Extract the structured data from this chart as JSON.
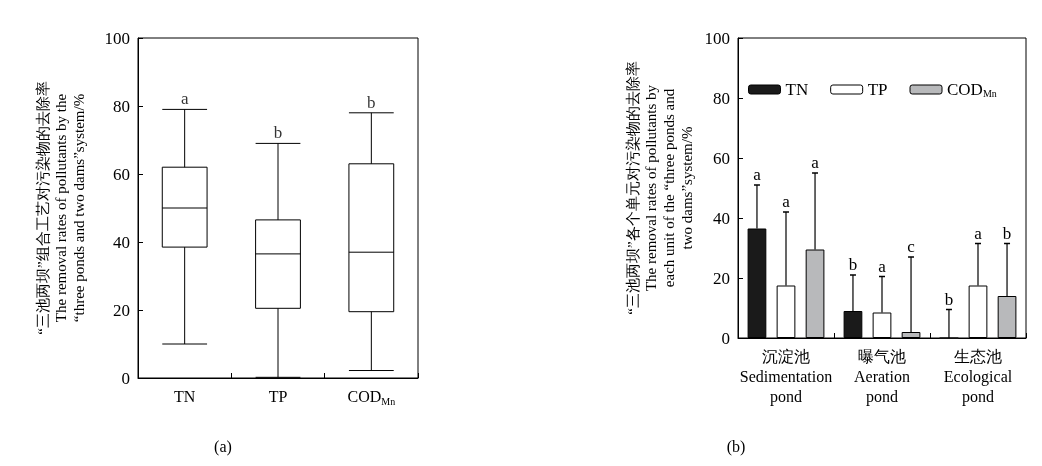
{
  "chart_data": [
    {
      "type": "box",
      "ylabel": "“三池两坝”组合工艺对污染物的去除率\nThe removal rates of pollutants by the\n“three ponds and two dams”system/%",
      "categories": [
        "TN",
        "TP",
        "COD$_{Mn}$"
      ],
      "boxes": [
        {
          "low": 10,
          "q1": 38.5,
          "median": 50,
          "q3": 62,
          "high": 79
        },
        {
          "low": 0.2,
          "q1": 20.5,
          "median": 36.5,
          "q3": 46.5,
          "high": 69
        },
        {
          "low": 2.2,
          "q1": 19.5,
          "median": 37,
          "q3": 63,
          "high": 78
        }
      ],
      "ylim": [
        0,
        100
      ],
      "yticks": [
        0,
        20,
        40,
        60,
        80,
        100
      ],
      "annotations": [
        {
          "text": "a",
          "x": "TN",
          "y": 79
        },
        {
          "text": "b",
          "x": "TP",
          "y": 69
        },
        {
          "text": "b",
          "x": "COD$_{Mn}$",
          "y": 78
        },
        "(a)"
      ]
    },
    {
      "type": "bar",
      "ylabel": "“三池两坝”各个单元对污染物的去除率\nThe removal rates of pollutants by\neach unit of the “three ponds and\ntwo dams”system/%",
      "categories": [
        "沉淀池\nSedimentation\npond",
        "曝气池\nAeration\npond",
        "生态池\nEcological\npond"
      ],
      "series": [
        {
          "name": "TN",
          "color": "#1a1a1a",
          "values": [
            36.5,
            9,
            0
          ],
          "errors": [
            [
              36.5,
              51
            ],
            [
              9,
              21
            ],
            [
              0,
              9.5
            ]
          ]
        },
        {
          "name": "TP",
          "color": "#ffffff",
          "values": [
            17.5,
            8.5,
            17.5
          ],
          "errors": [
            [
              17.5,
              42
            ],
            [
              8.5,
              20.5
            ],
            [
              17.5,
              31.5
            ]
          ]
        },
        {
          "name": "COD$_{Mn}$",
          "color": "#b8b9bb",
          "values": [
            29.5,
            2,
            14
          ],
          "errors": [
            [
              29.5,
              55
            ],
            [
              2,
              27
            ],
            [
              14,
              31.5
            ]
          ]
        }
      ],
      "ylim": [
        0,
        100
      ],
      "yticks": [
        0,
        20,
        40,
        60,
        80,
        100
      ],
      "legend": "top",
      "annotations": [
        "a",
        "a",
        "a",
        "b",
        "a",
        "c",
        "b",
        "a",
        "b",
        "(b)"
      ]
    }
  ]
}
